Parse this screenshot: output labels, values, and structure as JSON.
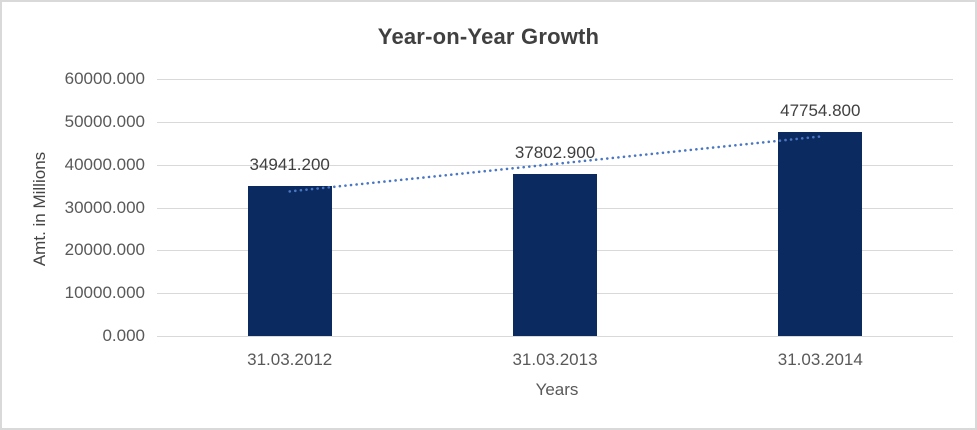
{
  "chart_data": {
    "type": "bar",
    "title": "Year-on-Year Growth",
    "xlabel": "Years",
    "ylabel": "Amt. in Millions",
    "categories": [
      "31.03.2012",
      "31.03.2013",
      "31.03.2014"
    ],
    "values": [
      34941.2,
      37802.9,
      47754.8
    ],
    "data_labels": [
      "34941.200",
      "37802.900",
      "47754.800"
    ],
    "ylim": [
      0,
      60000
    ],
    "y_tick_step": 10000,
    "y_tick_labels": [
      "0.000",
      "10000.000",
      "20000.000",
      "30000.000",
      "40000.000",
      "50000.000",
      "60000.000"
    ],
    "grid": true,
    "legend": "none",
    "trendline": {
      "type": "linear",
      "style": "dotted"
    },
    "colors": {
      "bar": "#0b2a60",
      "trendline": "#4a77c4",
      "gridline": "#d9d9d9",
      "axis_line": "#d9d9d9",
      "tick_label": "#595959",
      "data_label": "#404040",
      "title": "#404040",
      "axis_title": "#454545",
      "background": "#ffffff",
      "border": "#d9d9d9"
    }
  }
}
